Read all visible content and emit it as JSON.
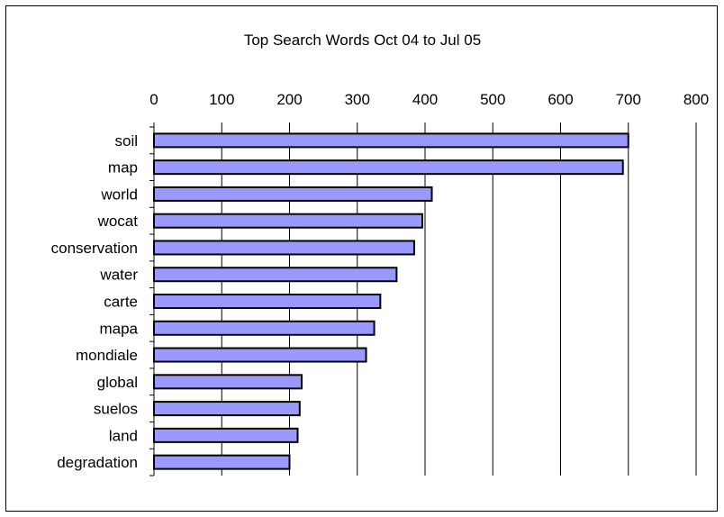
{
  "chart_data": {
    "type": "bar",
    "orientation": "horizontal",
    "title": "Top Search Words Oct 04 to Jul 05",
    "xlabel": "",
    "ylabel": "",
    "xlim": [
      0,
      800
    ],
    "x_ticks": [
      "0",
      "100",
      "200",
      "300",
      "400",
      "500",
      "600",
      "700",
      "800"
    ],
    "x_tick_values": [
      0,
      100,
      200,
      300,
      400,
      500,
      600,
      700,
      800
    ],
    "x_axis_position": "top",
    "grid": "vertical",
    "legend": "none",
    "categories": [
      "soil",
      "map",
      "world",
      "wocat",
      "conservation",
      "water",
      "carte",
      "mapa",
      "mondiale",
      "global",
      "suelos",
      "land",
      "degradation"
    ],
    "values": [
      700,
      692,
      410,
      396,
      384,
      358,
      334,
      325,
      313,
      218,
      215,
      212,
      200
    ],
    "bar_color": "#9999ff",
    "bar_stroke": "#000000"
  }
}
